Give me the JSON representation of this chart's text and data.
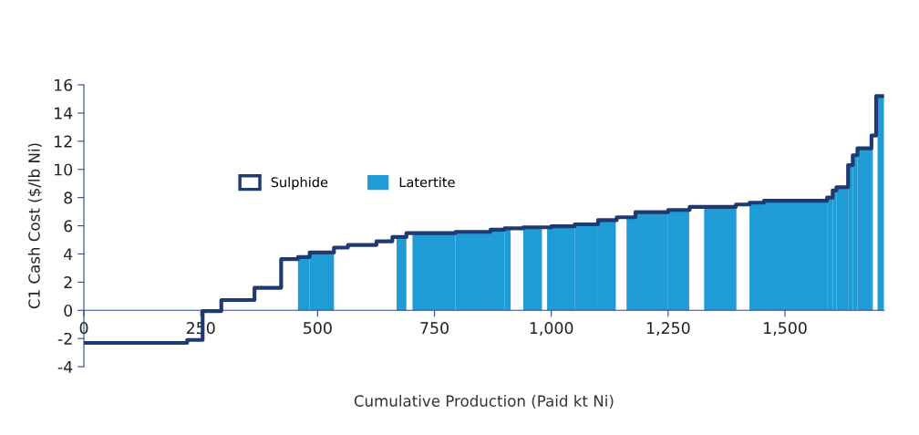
{
  "chart_data": {
    "type": "step",
    "xlabel": "Cumulative Production (Paid kt Ni)",
    "ylabel": "C1 Cash Cost ($/lb Ni)",
    "xlim": [
      0,
      1712
    ],
    "ylim": [
      -4,
      16
    ],
    "xticks": [
      0,
      250,
      500,
      750,
      {
        "value": 1000,
        "label": "1,000"
      },
      {
        "value": 1250,
        "label": "1,250"
      },
      {
        "value": 1500,
        "label": "1,500"
      }
    ],
    "yticks": [
      -4,
      -2,
      0,
      2,
      4,
      6,
      8,
      10,
      12,
      14,
      16
    ],
    "grid": false,
    "legend": "top left",
    "series": [
      {
        "name": "Latertite",
        "type": "area",
        "color": "#1f9bd5",
        "x": [
          458,
          483,
          535,
          669,
          690,
          703,
          795,
          870,
          900,
          913,
          940,
          980,
          991,
          1050,
          1100,
          1138,
          1161,
          1180,
          1250,
          1295,
          1327,
          1396,
          1424,
          1455,
          1590,
          1602,
          1610,
          1635,
          1645,
          1655,
          1685,
          1688,
          1698,
          1712
        ],
        "values": [
          3.78,
          4.1,
          null,
          5.2,
          null,
          5.48,
          5.57,
          5.72,
          5.82,
          null,
          5.89,
          null,
          5.96,
          6.1,
          6.4,
          null,
          6.6,
          6.97,
          7.12,
          null,
          7.34,
          null,
          7.64,
          7.77,
          8.0,
          8.5,
          8.74,
          10.3,
          11.0,
          11.5,
          12.4,
          null,
          15.2,
          15.2
        ]
      },
      {
        "name": "Sulphide",
        "color": "#1f3a70",
        "x": [
          0,
          221,
          254,
          294,
          365,
          422,
          458,
          483,
          535,
          565,
          626,
          660,
          690,
          795,
          870,
          900,
          940,
          1000,
          1050,
          1100,
          1140,
          1180,
          1250,
          1296,
          1395,
          1424,
          1455,
          1590,
          1602,
          1610,
          1635,
          1645,
          1655,
          1685,
          1695,
          1712
        ],
        "values": [
          -2.31,
          -2.1,
          -0.05,
          0.73,
          1.6,
          3.63,
          3.78,
          4.1,
          4.45,
          4.64,
          4.9,
          5.2,
          5.48,
          5.57,
          5.72,
          5.82,
          5.89,
          5.96,
          6.1,
          6.4,
          6.6,
          6.97,
          7.12,
          7.34,
          7.51,
          7.64,
          7.77,
          8.0,
          8.5,
          8.74,
          10.3,
          11.0,
          11.5,
          12.4,
          15.2,
          15.2
        ]
      }
    ]
  }
}
